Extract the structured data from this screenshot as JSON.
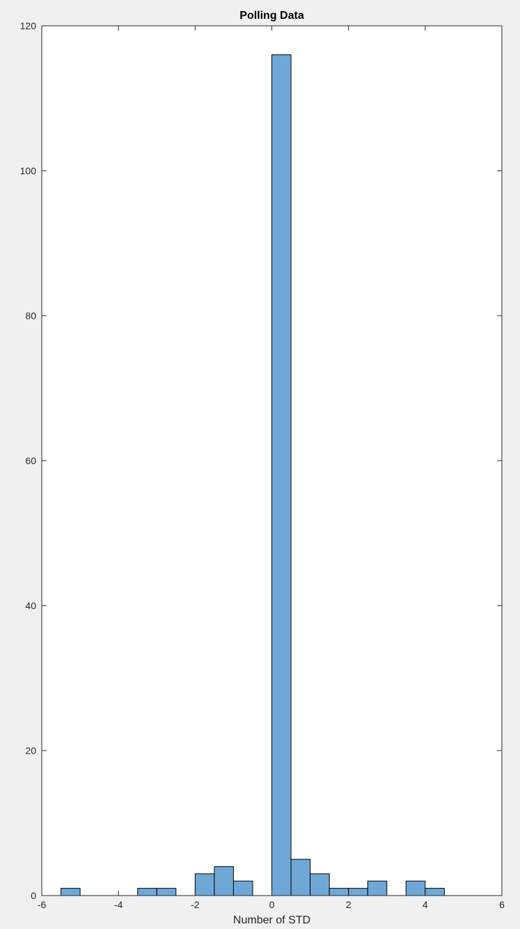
{
  "chart_data": {
    "type": "bar",
    "title": "Polling Data",
    "xlabel": "Number of STD",
    "ylabel": "",
    "xlim": [
      -6,
      6
    ],
    "ylim": [
      0,
      120
    ],
    "xticks": [
      -6,
      -4,
      -2,
      0,
      2,
      4,
      6
    ],
    "yticks": [
      0,
      20,
      40,
      60,
      80,
      100,
      120
    ],
    "grid": false,
    "bar_color": "#6fa8d6",
    "edge_color": "#000000",
    "bin_width": 0.5,
    "bins": [
      {
        "x0": -5.5,
        "x1": -5.0,
        "count": 1
      },
      {
        "x0": -5.0,
        "x1": -4.5,
        "count": 0
      },
      {
        "x0": -4.5,
        "x1": -4.0,
        "count": 0
      },
      {
        "x0": -4.0,
        "x1": -3.5,
        "count": 0
      },
      {
        "x0": -3.5,
        "x1": -3.0,
        "count": 1
      },
      {
        "x0": -3.0,
        "x1": -2.5,
        "count": 1
      },
      {
        "x0": -2.5,
        "x1": -2.0,
        "count": 0
      },
      {
        "x0": -2.0,
        "x1": -1.5,
        "count": 3
      },
      {
        "x0": -1.5,
        "x1": -1.0,
        "count": 4
      },
      {
        "x0": -1.0,
        "x1": -0.5,
        "count": 2
      },
      {
        "x0": -0.5,
        "x1": 0.0,
        "count": 0
      },
      {
        "x0": 0.0,
        "x1": 0.5,
        "count": 116
      },
      {
        "x0": 0.5,
        "x1": 1.0,
        "count": 5
      },
      {
        "x0": 1.0,
        "x1": 1.5,
        "count": 3
      },
      {
        "x0": 1.5,
        "x1": 2.0,
        "count": 1
      },
      {
        "x0": 2.0,
        "x1": 2.5,
        "count": 1
      },
      {
        "x0": 2.5,
        "x1": 3.0,
        "count": 2
      },
      {
        "x0": 3.0,
        "x1": 3.5,
        "count": 0
      },
      {
        "x0": 3.5,
        "x1": 4.0,
        "count": 2
      },
      {
        "x0": 4.0,
        "x1": 4.5,
        "count": 1
      }
    ]
  }
}
